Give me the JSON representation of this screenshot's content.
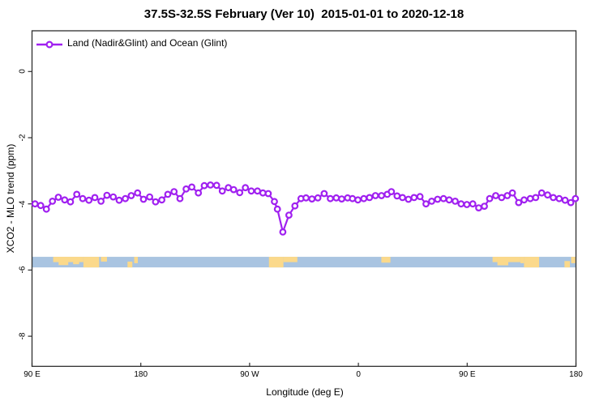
{
  "title": "37.5S-32.5S February (Ver 10)  2015-01-01 to 2020-12-18",
  "legend": {
    "label": "Land (Nadir&Glint) and Ocean (Glint)"
  },
  "colors": {
    "series": "#A020F0",
    "ocean": "#a9c4e1",
    "land": "#fbd98b",
    "axis": "#2e2e2e",
    "text": "#000000"
  },
  "chart_data": {
    "type": "line",
    "title": "37.5S-32.5S February (Ver 10)  2015-01-01 to 2020-12-18",
    "xlabel": "Longitude (deg E)",
    "ylabel": "XCO2 - MLO trend (ppm)",
    "xlim": [
      90,
      540
    ],
    "ylim": [
      -8.9,
      1.23
    ],
    "grid": false,
    "legend_position": "top-left",
    "x_ticks": [
      {
        "pos": 90,
        "label": "90 E"
      },
      {
        "pos": 180,
        "label": "180"
      },
      {
        "pos": 270,
        "label": "90 W"
      },
      {
        "pos": 360,
        "label": "0"
      },
      {
        "pos": 450,
        "label": "90 E"
      },
      {
        "pos": 540,
        "label": "180"
      }
    ],
    "y_ticks": [
      {
        "pos": 0,
        "label": "0"
      },
      {
        "pos": -2,
        "label": "-2"
      },
      {
        "pos": -4,
        "label": "-4"
      },
      {
        "pos": -6,
        "label": "-6"
      },
      {
        "pos": -8,
        "label": "-8"
      }
    ],
    "series": [
      {
        "name": "Land (Nadir&Glint) and Ocean (Glint)",
        "marker": "open-circle",
        "x": [
          92.5,
          97.2,
          101.9,
          106.9,
          111.8,
          117.0,
          121.8,
          127.0,
          131.9,
          137.1,
          142.0,
          147.1,
          152.0,
          157.2,
          162.1,
          167.2,
          172.1,
          177.3,
          182.2,
          187.3,
          192.2,
          197.4,
          202.3,
          207.5,
          212.4,
          217.5,
          222.2,
          227.6,
          232.5,
          237.6,
          242.7,
          247.4,
          252.4,
          256.8,
          261.8,
          266.5,
          271.4,
          276.5,
          281.0,
          285.4,
          290.5,
          293.0,
          297.5,
          302.5,
          307.5,
          312.5,
          316.7,
          321.6,
          326.5,
          331.7,
          336.8,
          341.7,
          346.2,
          351.1,
          355.1,
          359.6,
          364.5,
          369.2,
          374.1,
          379.1,
          383.9,
          387.3,
          392.0,
          396.5,
          401.4,
          406.1,
          411.0,
          415.9,
          420.6,
          425.5,
          430.4,
          435.1,
          440.1,
          445.0,
          449.7,
          454.6,
          459.5,
          464.2,
          468.6,
          473.6,
          478.5,
          483.2,
          487.4,
          492.6,
          497.1,
          502.2,
          506.7,
          511.6,
          516.5,
          521.2,
          526.1,
          531.0,
          535.7,
          539.5
        ],
        "y": [
          -4.0,
          -4.05,
          -4.16,
          -3.92,
          -3.8,
          -3.88,
          -3.94,
          -3.71,
          -3.84,
          -3.89,
          -3.81,
          -3.92,
          -3.74,
          -3.79,
          -3.89,
          -3.84,
          -3.75,
          -3.67,
          -3.86,
          -3.79,
          -3.94,
          -3.88,
          -3.71,
          -3.63,
          -3.84,
          -3.55,
          -3.49,
          -3.67,
          -3.45,
          -3.43,
          -3.44,
          -3.61,
          -3.51,
          -3.57,
          -3.66,
          -3.51,
          -3.61,
          -3.61,
          -3.67,
          -3.69,
          -3.93,
          -4.16,
          -4.85,
          -4.34,
          -4.06,
          -3.84,
          -3.82,
          -3.85,
          -3.82,
          -3.69,
          -3.84,
          -3.82,
          -3.85,
          -3.82,
          -3.84,
          -3.88,
          -3.84,
          -3.81,
          -3.75,
          -3.75,
          -3.71,
          -3.63,
          -3.76,
          -3.81,
          -3.86,
          -3.81,
          -3.78,
          -4.0,
          -3.92,
          -3.86,
          -3.84,
          -3.88,
          -3.92,
          -4.0,
          -4.02,
          -4.0,
          -4.12,
          -4.07,
          -3.84,
          -3.75,
          -3.81,
          -3.75,
          -3.67,
          -3.96,
          -3.88,
          -3.84,
          -3.81,
          -3.67,
          -3.73,
          -3.81,
          -3.84,
          -3.89,
          -3.96,
          -3.84
        ]
      }
    ],
    "map_strip": {
      "description": "land/ocean band for latitude 37.5S-32.5S drawn across the plot",
      "value_top": -5.6,
      "value_bottom": -5.92,
      "land_patches": [
        {
          "from": 107.5,
          "to": 132.5,
          "top": 0,
          "bottom": 0.5
        },
        {
          "from": 112,
          "to": 120,
          "top": 0,
          "bottom": 0.78
        },
        {
          "from": 124,
          "to": 129,
          "top": 0,
          "bottom": 0.7
        },
        {
          "from": 132.5,
          "to": 145.5,
          "top": 0,
          "bottom": 1
        },
        {
          "from": 147,
          "to": 152,
          "top": 0,
          "bottom": 0.45
        },
        {
          "from": 169,
          "to": 173,
          "top": 0.45,
          "bottom": 1
        },
        {
          "from": 174.5,
          "to": 177.5,
          "top": 0,
          "bottom": 0.6
        },
        {
          "from": 286,
          "to": 298,
          "top": 0,
          "bottom": 1
        },
        {
          "from": 298,
          "to": 309.5,
          "top": 0,
          "bottom": 0.5
        },
        {
          "from": 379,
          "to": 386.5,
          "top": 0,
          "bottom": 0.55
        },
        {
          "from": 471,
          "to": 494,
          "top": 0,
          "bottom": 0.5
        },
        {
          "from": 475,
          "to": 484,
          "top": 0,
          "bottom": 0.8
        },
        {
          "from": 494,
          "to": 497,
          "top": 0,
          "bottom": 0.6
        },
        {
          "from": 497,
          "to": 509.5,
          "top": 0,
          "bottom": 1
        },
        {
          "from": 530.5,
          "to": 535,
          "top": 0.4,
          "bottom": 1
        },
        {
          "from": 536,
          "to": 539.5,
          "top": 0,
          "bottom": 0.6
        }
      ]
    }
  }
}
